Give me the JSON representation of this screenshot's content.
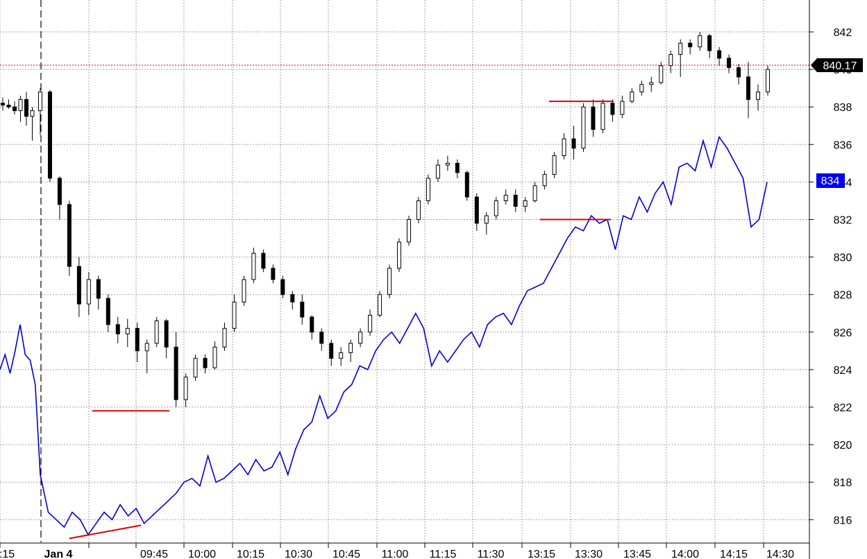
{
  "chart_data": {
    "type": "line",
    "grid": true,
    "y_axis": {
      "side": "right",
      "ticks": [
        "816",
        "818",
        "820",
        "822",
        "824",
        "826",
        "828",
        "830",
        "832",
        "834",
        "836",
        "838",
        "840",
        "842"
      ],
      "values": [
        816,
        818,
        820,
        822,
        824,
        826,
        828,
        830,
        832,
        834,
        836,
        838,
        840,
        842
      ]
    },
    "x_axis": {
      "ticks": [
        ":15",
        "Jan 4",
        "09:45",
        "10:00",
        "10:15",
        "10:30",
        "10:45",
        "11:00",
        "11:15",
        "11:30",
        "13:15",
        "13:30",
        "13:45",
        "14:00",
        "14:15",
        "14:30"
      ]
    },
    "last_price": {
      "value": 840.17,
      "label": "840.17"
    },
    "blue_label": {
      "value": 834,
      "label": "834"
    },
    "colors": {
      "candles": "#000000",
      "blue_line": "#0000cc",
      "trend_lines": "#dd0000",
      "price_line": "#cc0000",
      "grid": "#a0a0a0"
    },
    "series": [
      {
        "type": "candlestick",
        "note_points": "approximate closes per bar (o,h,l,c)",
        "ohlc": [
          [
            838.2,
            838.5,
            837.8,
            838.1
          ],
          [
            838.1,
            838.4,
            837.9,
            838.0
          ],
          [
            838.0,
            838.3,
            837.6,
            837.8
          ],
          [
            837.8,
            838.6,
            837.2,
            838.4
          ],
          [
            838.4,
            838.8,
            837.0,
            837.5
          ],
          [
            837.5,
            838.0,
            836.2,
            837.8
          ],
          [
            837.8,
            839.0,
            836.5,
            838.8
          ],
          [
            838.8,
            838.9,
            834.0,
            834.2
          ],
          [
            834.2,
            834.3,
            832.0,
            832.8
          ],
          [
            832.8,
            833.0,
            829.0,
            829.5
          ],
          [
            829.5,
            830.0,
            826.8,
            827.5
          ],
          [
            827.5,
            829.2,
            826.9,
            828.8
          ],
          [
            828.8,
            829.0,
            827.2,
            827.8
          ],
          [
            827.8,
            828.0,
            826.0,
            826.4
          ],
          [
            826.4,
            826.8,
            825.4,
            825.9
          ],
          [
            825.9,
            826.7,
            825.2,
            826.2
          ],
          [
            826.2,
            826.5,
            824.4,
            825.0
          ],
          [
            825.0,
            825.6,
            823.8,
            825.4
          ],
          [
            825.4,
            826.8,
            825.2,
            826.6
          ],
          [
            826.6,
            826.7,
            824.6,
            825.2
          ],
          [
            825.2,
            826.0,
            822.0,
            822.4
          ],
          [
            822.4,
            823.8,
            822.0,
            823.6
          ],
          [
            823.6,
            824.8,
            823.4,
            824.6
          ],
          [
            824.6,
            824.8,
            823.8,
            824.1
          ],
          [
            824.1,
            825.5,
            824.0,
            825.2
          ],
          [
            825.2,
            826.5,
            825.0,
            826.2
          ],
          [
            826.2,
            828.0,
            826.0,
            827.6
          ],
          [
            827.6,
            829.0,
            827.4,
            828.8
          ],
          [
            828.8,
            830.5,
            828.6,
            830.2
          ],
          [
            830.2,
            830.4,
            829.2,
            829.4
          ],
          [
            829.4,
            829.6,
            828.6,
            828.8
          ],
          [
            828.8,
            829.0,
            827.8,
            828.0
          ],
          [
            828.0,
            828.2,
            827.2,
            827.6
          ],
          [
            827.6,
            828.0,
            826.4,
            826.8
          ],
          [
            826.8,
            826.9,
            825.6,
            826.0
          ],
          [
            826.0,
            826.2,
            825.0,
            825.4
          ],
          [
            825.4,
            825.6,
            824.2,
            824.6
          ],
          [
            824.6,
            825.2,
            824.2,
            824.9
          ],
          [
            824.9,
            825.6,
            824.4,
            825.4
          ],
          [
            825.4,
            826.2,
            825.2,
            826.0
          ],
          [
            826.0,
            827.2,
            825.8,
            826.9
          ],
          [
            826.9,
            828.2,
            826.8,
            828.0
          ],
          [
            828.0,
            829.6,
            827.8,
            829.4
          ],
          [
            829.4,
            831.0,
            829.2,
            830.8
          ],
          [
            830.8,
            832.2,
            830.6,
            832.0
          ],
          [
            832.0,
            833.2,
            831.8,
            833.0
          ],
          [
            833.0,
            834.4,
            832.8,
            834.2
          ],
          [
            834.2,
            835.2,
            834.0,
            834.9
          ],
          [
            834.9,
            835.4,
            834.6,
            835.0
          ],
          [
            835.0,
            835.2,
            834.2,
            834.5
          ],
          [
            834.5,
            834.6,
            833.0,
            833.2
          ],
          [
            833.2,
            833.4,
            831.4,
            831.8
          ],
          [
            831.8,
            832.4,
            831.2,
            832.2
          ],
          [
            832.2,
            833.2,
            832.0,
            833.0
          ],
          [
            833.0,
            833.6,
            832.8,
            833.3
          ],
          [
            833.3,
            833.6,
            832.4,
            832.7
          ],
          [
            832.7,
            833.2,
            832.4,
            833.0
          ],
          [
            833.0,
            834.0,
            832.9,
            833.8
          ],
          [
            833.8,
            834.6,
            833.6,
            834.4
          ],
          [
            834.4,
            835.6,
            834.2,
            835.4
          ],
          [
            835.4,
            836.6,
            835.2,
            836.3
          ],
          [
            836.3,
            837.0,
            835.2,
            835.8
          ],
          [
            835.8,
            838.2,
            835.6,
            838.0
          ],
          [
            838.0,
            838.4,
            836.4,
            836.8
          ],
          [
            836.8,
            838.4,
            836.6,
            838.2
          ],
          [
            838.2,
            838.4,
            837.2,
            837.6
          ],
          [
            837.6,
            838.6,
            837.4,
            838.3
          ],
          [
            838.3,
            839.0,
            838.2,
            838.8
          ],
          [
            838.8,
            839.4,
            838.6,
            839.2
          ],
          [
            839.2,
            839.6,
            838.8,
            839.3
          ],
          [
            839.3,
            840.4,
            839.2,
            840.2
          ],
          [
            840.2,
            841.0,
            839.8,
            840.8
          ],
          [
            840.8,
            841.6,
            839.6,
            841.4
          ],
          [
            841.4,
            841.6,
            840.8,
            841.2
          ],
          [
            841.2,
            842.0,
            841.0,
            841.8
          ],
          [
            841.8,
            841.9,
            840.6,
            841.0
          ],
          [
            841.0,
            841.2,
            840.2,
            840.6
          ],
          [
            840.6,
            840.8,
            839.8,
            840.1
          ],
          [
            840.1,
            840.3,
            839.2,
            839.6
          ],
          [
            839.6,
            840.4,
            837.4,
            838.4
          ],
          [
            838.4,
            839.2,
            837.8,
            838.8
          ],
          [
            838.8,
            840.2,
            838.6,
            840.0
          ]
        ]
      },
      {
        "type": "line",
        "values": [
          824.0,
          824.8,
          823.8,
          825.0,
          826.4,
          824.8,
          824.5,
          823.2,
          818.4,
          816.4,
          816.0,
          815.6,
          816.4,
          816.0,
          815.2,
          815.8,
          816.4,
          816.0,
          816.8,
          816.2,
          816.6,
          815.8,
          816.2,
          816.6,
          817.0,
          817.4,
          818.0,
          818.2,
          817.8,
          819.4,
          818.0,
          818.2,
          818.6,
          819.0,
          818.4,
          819.2,
          818.6,
          818.8,
          819.6,
          818.4,
          819.8,
          820.8,
          821.2,
          822.6,
          821.4,
          821.8,
          822.8,
          823.2,
          824.2,
          824.0,
          825.0,
          825.6,
          826.0,
          825.4,
          826.2,
          827.0,
          826.2,
          824.2,
          825.0,
          824.4,
          825.0,
          825.6,
          826.0,
          825.2,
          826.4,
          826.8,
          827.0,
          826.4,
          827.4,
          828.2,
          828.4,
          828.6,
          829.4,
          830.2,
          831.0,
          831.6,
          831.4,
          832.2,
          831.8,
          832.0,
          830.4,
          832.2,
          832.0,
          833.2,
          832.4,
          833.4,
          834.0,
          832.8,
          834.8,
          835.0,
          834.6,
          836.2,
          834.8,
          836.4,
          835.8,
          835.0,
          834.2,
          831.6,
          832.0,
          834.0
        ]
      }
    ],
    "annotations": [
      {
        "type": "hline",
        "value": 821.8,
        "color": "#dd0000"
      },
      {
        "type": "trendline",
        "from": 815.0,
        "to": 815.7,
        "color": "#dd0000"
      },
      {
        "type": "hline",
        "value": 838.3,
        "color": "#dd0000"
      },
      {
        "type": "hline",
        "value": 832.0,
        "color": "#dd0000"
      }
    ]
  }
}
